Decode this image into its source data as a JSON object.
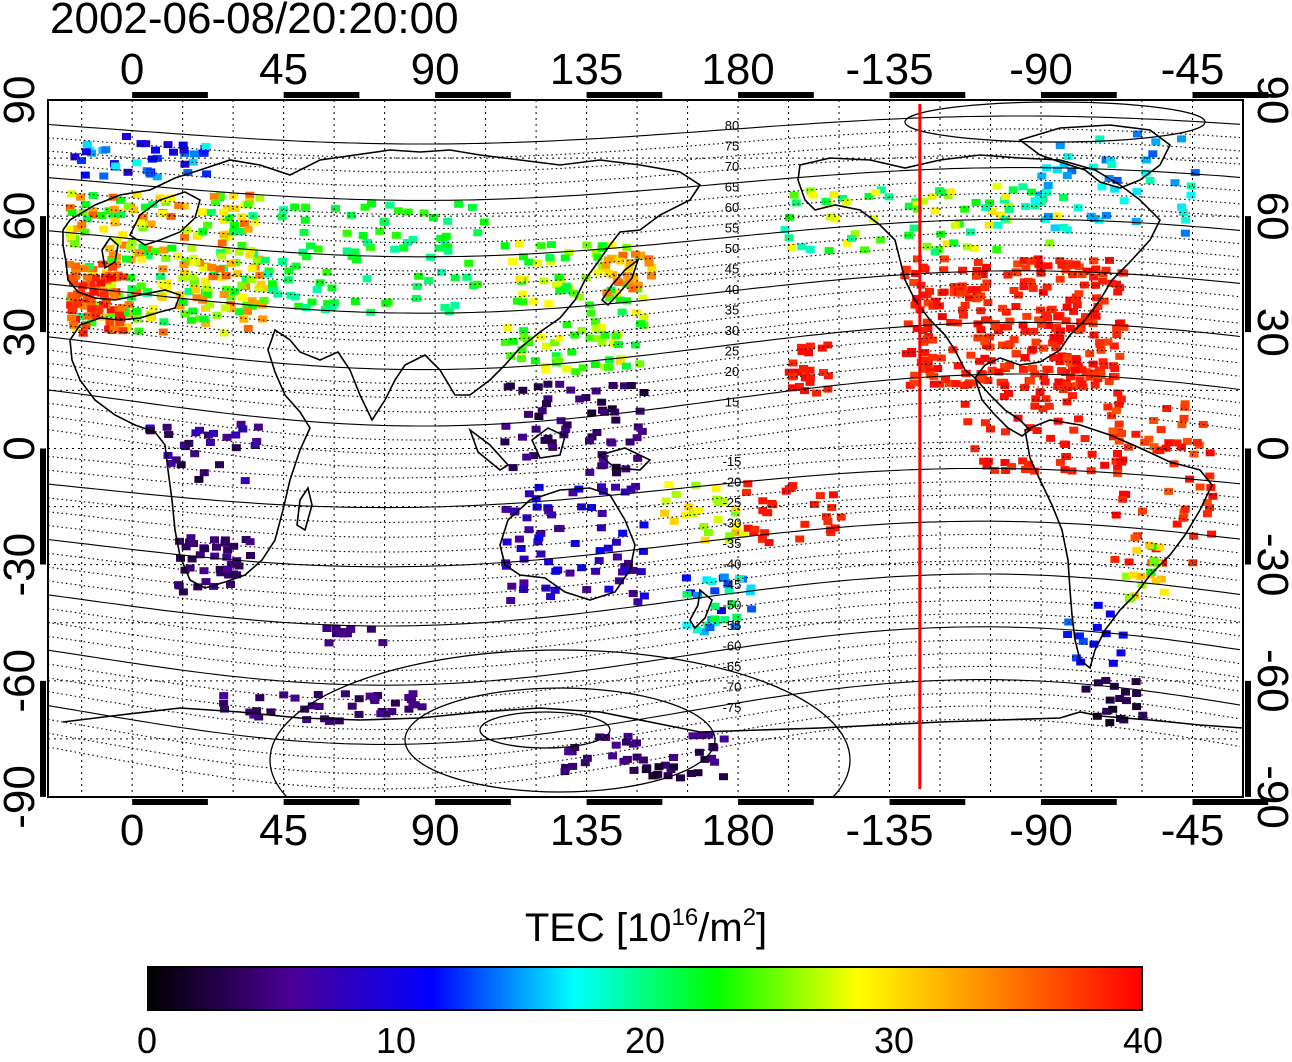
{
  "title": "2002-06-08/20:20:00",
  "map": {
    "top_lon_ticks": [
      "0",
      "45",
      "90",
      "135",
      "180",
      "-135",
      "-90",
      "-45"
    ],
    "bottom_lon_ticks": [
      "0",
      "45",
      "90",
      "135",
      "180",
      "-135",
      "-90",
      "-45"
    ],
    "left_lat_ticks": [
      "90",
      "60",
      "30",
      "0",
      "-30",
      "-60",
      "-90"
    ],
    "right_lat_ticks": [
      "90",
      "60",
      "30",
      "0",
      "-30",
      "-60",
      "-90"
    ],
    "contour_labels_north": [
      "80",
      "75",
      "70",
      "65",
      "60",
      "55",
      "50",
      "45",
      "40",
      "35",
      "30",
      "25",
      "20",
      "15"
    ],
    "contour_labels_south": [
      "-15",
      "-20",
      "-25",
      "-30",
      "-35",
      "-40",
      "-45",
      "-50",
      "-55",
      "-60",
      "-65",
      "-70",
      "-75"
    ],
    "terminator_line_color": "#ff0000"
  },
  "colorbar": {
    "title_prefix": "TEC  [10",
    "title_exp1": "16",
    "title_mid": "/m",
    "title_exp2": "2",
    "title_suffix": "]",
    "ticks": [
      "0",
      "10",
      "20",
      "30",
      "40"
    ],
    "colors": [
      "#000000",
      "#4b0096",
      "#0000ff",
      "#00ffff",
      "#00ff00",
      "#ffff00",
      "#ff8000",
      "#ff0000"
    ]
  },
  "chart_data": {
    "type": "heatmap",
    "title": "2002-06-08/20:20:00",
    "colorbar_label": "TEC [10^16/m^2]",
    "colorbar_range": [
      0,
      40
    ],
    "lon_range": [
      -25,
      330
    ],
    "lat_range": [
      -90,
      90
    ],
    "lon_ticks": [
      0,
      45,
      90,
      135,
      180,
      -135,
      -90,
      -45
    ],
    "lat_ticks": [
      90,
      60,
      30,
      0,
      -30,
      -60,
      -90
    ],
    "terminator_lon": -126
  }
}
